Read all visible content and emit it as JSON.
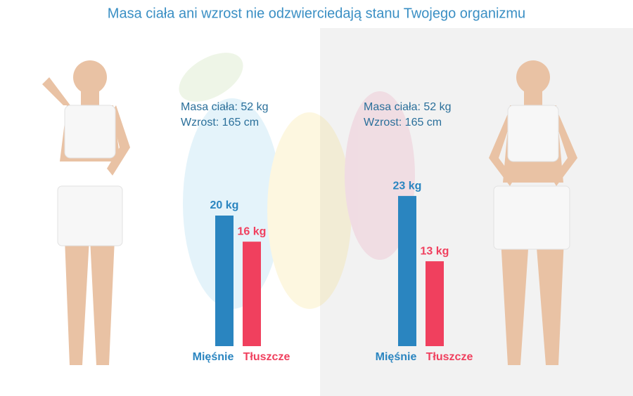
{
  "title": "Masa ciała ani wzrost nie odzwierciedają stanu Twojego organizmu",
  "chart_data": [
    {
      "type": "bar",
      "annotations": [
        "Masa ciała: 52 kg",
        "Wzrost: 165 cm"
      ],
      "categories": [
        "Mięśnie",
        "Tłuszcze"
      ],
      "values": [
        20,
        16
      ],
      "value_labels": [
        "20 kg",
        "16 kg"
      ],
      "colors": [
        "#2a85c0",
        "#f0405e"
      ]
    },
    {
      "type": "bar",
      "annotations": [
        "Masa ciała: 52 kg",
        "Wzrost: 165 cm"
      ],
      "categories": [
        "Mięśnie",
        "Tłuszcze"
      ],
      "values": [
        23,
        13
      ],
      "value_labels": [
        "23 kg",
        "13 kg"
      ],
      "colors": [
        "#2a85c0",
        "#f0405e"
      ]
    }
  ]
}
